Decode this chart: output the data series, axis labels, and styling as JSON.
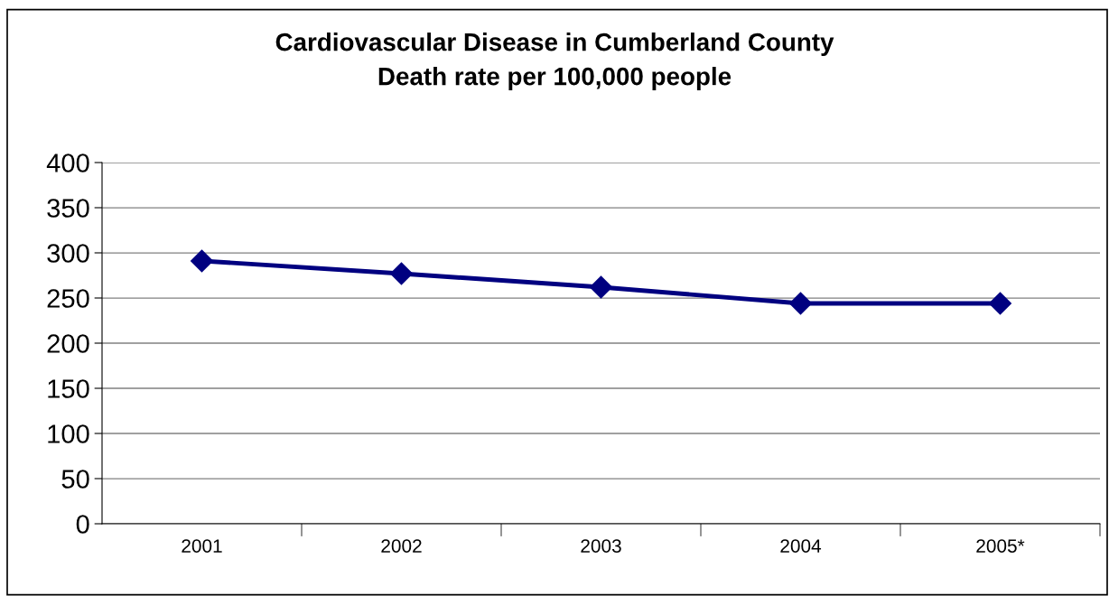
{
  "chart_data": {
    "type": "line",
    "title": "Cardiovascular Disease in Cumberland County\nDeath rate per 100,000 people",
    "categories": [
      "2001",
      "2002",
      "2003",
      "2004",
      "2005*"
    ],
    "series": [
      {
        "color": "#000080",
        "values": [
          291,
          277,
          262,
          244,
          244
        ]
      }
    ],
    "ylim": [
      0,
      400
    ],
    "yticks": [
      0,
      50,
      100,
      150,
      200,
      250,
      300,
      350,
      400
    ],
    "grid": "y",
    "marker": "diamond",
    "line_style": "solid",
    "legend": false
  }
}
